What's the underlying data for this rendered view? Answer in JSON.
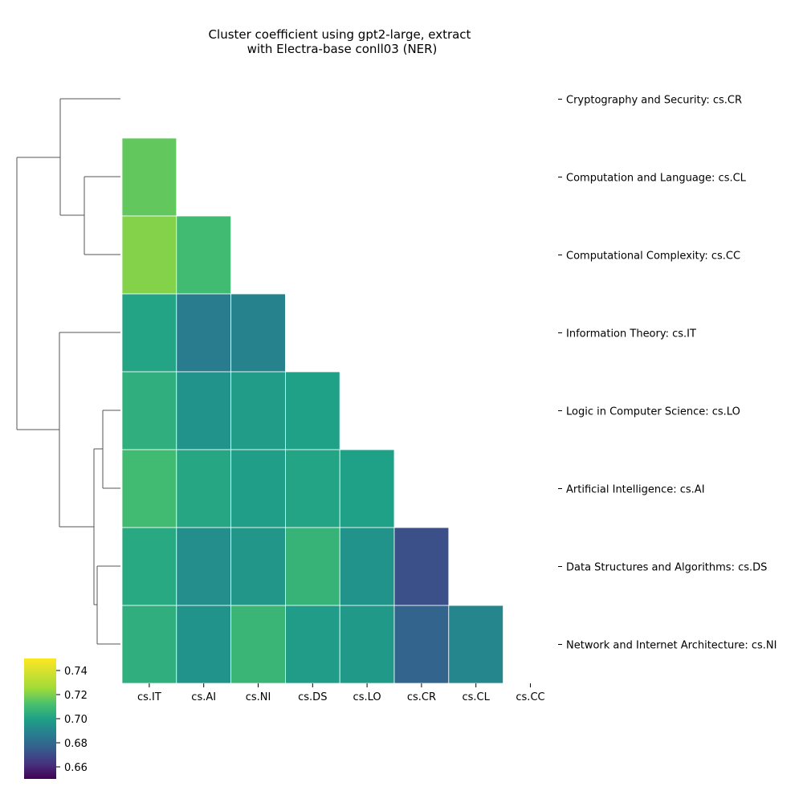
{
  "chart_data": {
    "type": "heatmap",
    "title_lines": [
      "Cluster coefficient using gpt2-large, extract",
      "with Electra-base conll03 (NER)"
    ],
    "columns": [
      "cs.IT",
      "cs.AI",
      "cs.NI",
      "cs.DS",
      "cs.LO",
      "cs.CR",
      "cs.CL",
      "cs.CC"
    ],
    "rows": [
      "Cryptography and Security: cs.CR",
      "Computation and Language: cs.CL",
      "Computational Complexity: cs.CC",
      "Information Theory: cs.IT",
      "Logic in Computer Science: cs.LO",
      "Artificial Intelligence: cs.AI",
      "Data Structures and Algorithms: cs.DS",
      "Network and Internet Architecture: cs.NI"
    ],
    "values": [
      [],
      [
        0.716
      ],
      [
        0.721,
        0.71
      ],
      [
        0.701,
        0.686,
        0.689
      ],
      [
        0.705,
        0.695,
        0.698,
        0.7
      ],
      [
        0.71,
        0.702,
        0.699,
        0.701,
        0.7
      ],
      [
        0.703,
        0.693,
        0.696,
        0.707,
        0.695,
        0.671
      ],
      [
        0.705,
        0.695,
        0.708,
        0.698,
        0.697,
        0.678,
        0.69
      ]
    ],
    "colorbar": {
      "min": 0.65,
      "max": 0.75,
      "ticks": [
        "0.66",
        "0.68",
        "0.70",
        "0.72",
        "0.74"
      ],
      "colormap": "viridis"
    },
    "dendrogram": "row clustering shown on left; mask upper triangle incl. diagonal"
  }
}
